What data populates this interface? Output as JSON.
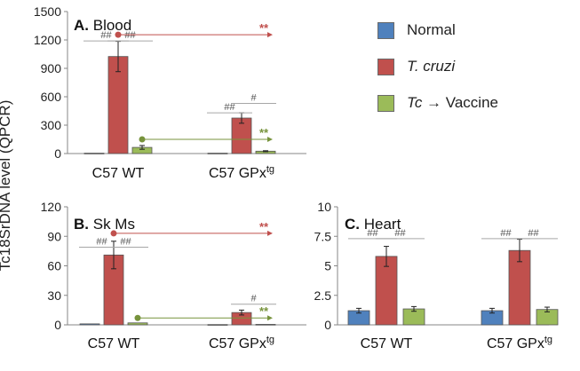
{
  "y_axis_title": "Tc18SrDNA level (QPCR)",
  "legend": [
    {
      "lead": "",
      "label": "Normal",
      "color": "#4f81bd"
    },
    {
      "lead": "T. cruzi",
      "label": "",
      "color": "#c0504d"
    },
    {
      "lead": "Tc",
      "label": " → Vaccine",
      "color": "#9bbb59"
    }
  ],
  "chart_data": [
    {
      "type": "bar",
      "panel": "A",
      "title": "A. Blood",
      "categories": [
        "C57 WT",
        "C57 GPx"
      ],
      "category_superscripts": [
        "",
        "tg"
      ],
      "ylim": [
        0,
        1500
      ],
      "yticks": [
        0,
        300,
        600,
        900,
        1200,
        1500
      ],
      "ytick_labels": [
        "0",
        "300",
        "600",
        "900",
        "1200",
        "1500"
      ],
      "series": [
        {
          "name": "Normal",
          "values": [
            4,
            4
          ],
          "errors": [
            0,
            0
          ]
        },
        {
          "name": "T. cruzi",
          "values": [
            1025,
            375
          ],
          "errors": [
            160,
            55
          ]
        },
        {
          "name": "Tc → Vaccine",
          "values": [
            65,
            25
          ],
          "errors": [
            20,
            5
          ]
        }
      ],
      "brackets": [
        {
          "label": "##",
          "group": 0,
          "from": 0,
          "to": 1,
          "level": 1190
        },
        {
          "label": "##",
          "group": 0,
          "from": 1,
          "to": 2,
          "level": 1190
        },
        {
          "label": "##",
          "group": 1,
          "from": 0,
          "to": 1,
          "level": 430
        },
        {
          "label": "#",
          "group": 1,
          "from": 1,
          "to": 2,
          "level": 530
        }
      ],
      "arrows": [
        {
          "label": "**",
          "color": "#c0504d",
          "group_from": 0,
          "group_to": 1,
          "level": 1255
        },
        {
          "label": "**",
          "color": "#77933c",
          "group_from": 0,
          "group_to": 1,
          "level": 150
        }
      ]
    },
    {
      "type": "bar",
      "panel": "B",
      "title": "B. Sk Ms",
      "categories": [
        "C57 WT",
        "C57 GPx"
      ],
      "category_superscripts": [
        "",
        "tg"
      ],
      "ylim": [
        0,
        120
      ],
      "yticks": [
        0,
        30,
        60,
        90,
        120
      ],
      "ytick_labels": [
        "0",
        "30",
        "60",
        "90",
        "120"
      ],
      "series": [
        {
          "name": "Normal",
          "values": [
            1,
            0.3
          ],
          "errors": [
            0,
            0
          ]
        },
        {
          "name": "T. cruzi",
          "values": [
            71,
            12.5
          ],
          "errors": [
            14,
            2.5
          ]
        },
        {
          "name": "Tc → Vaccine",
          "values": [
            2,
            0.5
          ],
          "errors": [
            0,
            0
          ]
        }
      ],
      "brackets": [
        {
          "label": "##",
          "group": 0,
          "from": 0,
          "to": 1,
          "level": 79
        },
        {
          "label": "##",
          "group": 0,
          "from": 1,
          "to": 2,
          "level": 79
        },
        {
          "label": "#",
          "group": 1,
          "from": 1,
          "to": 2,
          "level": 21
        }
      ],
      "arrows": [
        {
          "label": "**",
          "color": "#c0504d",
          "group_from": 0,
          "group_to": 1,
          "level": 93
        },
        {
          "label": "**",
          "color": "#77933c",
          "group_from": 0,
          "group_to": 1,
          "level": 7
        }
      ]
    },
    {
      "type": "bar",
      "panel": "C",
      "title": "C. Heart",
      "categories": [
        "C57 WT",
        "C57 GPx"
      ],
      "category_superscripts": [
        "",
        "tg"
      ],
      "ylim": [
        0,
        10
      ],
      "yticks": [
        0,
        2.5,
        5,
        7.5,
        10
      ],
      "ytick_labels": [
        "0",
        "2.5",
        "5",
        "7.5",
        "10"
      ],
      "series": [
        {
          "name": "Normal",
          "values": [
            1.2,
            1.2
          ],
          "errors": [
            0.2,
            0.2
          ]
        },
        {
          "name": "T. cruzi",
          "values": [
            5.8,
            6.3
          ],
          "errors": [
            0.85,
            0.95
          ]
        },
        {
          "name": "Tc → Vaccine",
          "values": [
            1.35,
            1.3
          ],
          "errors": [
            0.2,
            0.2
          ]
        }
      ],
      "brackets": [
        {
          "label": "##",
          "group": 0,
          "from": 0,
          "to": 1,
          "level": 7.3
        },
        {
          "label": "##",
          "group": 0,
          "from": 1,
          "to": 2,
          "level": 7.3
        },
        {
          "label": "##",
          "group": 1,
          "from": 0,
          "to": 1,
          "level": 7.3
        },
        {
          "label": "##",
          "group": 1,
          "from": 1,
          "to": 2,
          "level": 7.3
        }
      ],
      "arrows": []
    }
  ]
}
